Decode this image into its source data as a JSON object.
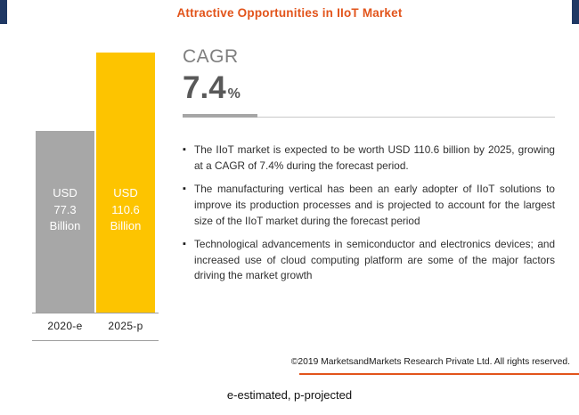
{
  "header": {
    "title": "Attractive Opportunities in IIoT Market"
  },
  "chart_data": {
    "type": "bar",
    "title": "Attractive Opportunities in IIoT Market",
    "categories": [
      "2020-e",
      "2025-p"
    ],
    "values": [
      77.3,
      110.6
    ],
    "unit": "USD Billion",
    "ylim": [
      0,
      110.6
    ],
    "legend": "none",
    "grid": false,
    "bars": [
      {
        "category": "2020-e",
        "value": 77.3,
        "color": "#a7a7a7",
        "label_lines": [
          "USD",
          "77.3",
          "Billion"
        ]
      },
      {
        "category": "2025-p",
        "value": 110.6,
        "color": "#fdc400",
        "label_lines": [
          "USD",
          "110.6",
          "Billion"
        ]
      }
    ]
  },
  "cagr": {
    "label": "CAGR",
    "value": "7.4",
    "unit": "%"
  },
  "bullet_marker": "▪",
  "bullets": [
    "The IIoT market is expected to be worth USD 110.6 billion by 2025, growing at a CAGR of 7.4% during the forecast period.",
    "The manufacturing vertical has been an early adopter of IIoT solutions to improve its production processes and is projected to account for the largest size of the IIoT market during the forecast period",
    "Technological advancements in semiconductor and electronics devices; and increased use of cloud computing platform are some of the major factors driving the market growth"
  ],
  "footer": {
    "copyright": "©2019 MarketsandMarkets Research Private Ltd. All rights reserved.",
    "note": "e-estimated, p-projected"
  },
  "colors": {
    "accent_orange": "#e2541b",
    "navy_blue": "#1f3864",
    "bar_gray": "#a7a7a7",
    "bar_yellow": "#fdc400",
    "cagr_gray": "#7f7f7f",
    "cagr_value_gray": "#595959",
    "text_dark": "#303030"
  }
}
